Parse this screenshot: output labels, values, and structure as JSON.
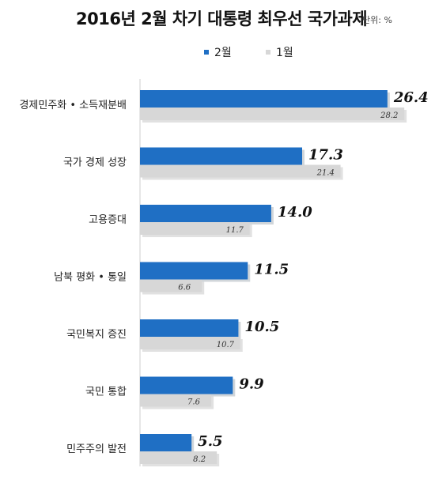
{
  "header": {
    "title": "2016년 2월 차기 대통령 최우선 국가과제",
    "unit_note": "단위: %"
  },
  "legend": {
    "items": [
      {
        "label": "2월",
        "color": "#1f6fc4"
      },
      {
        "label": "1월",
        "color": "#d7d7d7"
      }
    ]
  },
  "chart_data": {
    "type": "bar",
    "orientation": "horizontal",
    "title": "2016년 2월 차기 대통령 최우선 국가과제",
    "unit": "단위: %",
    "categories": [
      "경제민주화 • 소득재분배",
      "국가 경제 성장",
      "고용증대",
      "남북 평화 • 통일",
      "국민복지 증진",
      "국민 통합",
      "민주주의 발전"
    ],
    "series": [
      {
        "name": "2월",
        "color": "#1f6fc4",
        "values": [
          26.4,
          17.3,
          14.0,
          11.5,
          10.5,
          9.9,
          5.5
        ]
      },
      {
        "name": "1월",
        "color": "#d7d7d7",
        "values": [
          28.2,
          21.4,
          11.7,
          6.6,
          10.7,
          7.6,
          8.2
        ]
      }
    ],
    "value_labels_feb": [
      "26.4",
      "17.3",
      "14.0",
      "11.5",
      "10.5",
      "9.9",
      "5.5"
    ],
    "value_labels_jan": [
      "28.2",
      "21.4",
      "11.7",
      "6.6",
      "10.7",
      "7.6",
      "8.2"
    ],
    "legend_position": "top",
    "grid": false
  }
}
